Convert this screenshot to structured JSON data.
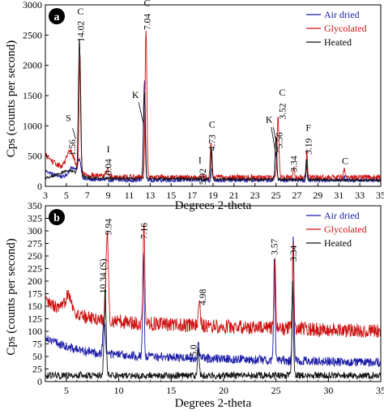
{
  "chart_data": [
    {
      "panel_label": "a",
      "type": "line",
      "xlabel": "Degrees 2-theta",
      "ylabel": "Cps (counts per second)",
      "xlim": [
        3,
        35
      ],
      "ylim": [
        0,
        3000
      ],
      "xticks": [
        3,
        5,
        7,
        9,
        11,
        13,
        15,
        17,
        19,
        21,
        23,
        25,
        27,
        29,
        31,
        33,
        35
      ],
      "yticks": [
        0,
        500,
        1000,
        1500,
        2000,
        2500,
        3000
      ],
      "legend": {
        "position": "top-right"
      },
      "series": [
        {
          "name": "Air dried",
          "color": "#1a1aa6",
          "baseline": 100,
          "noise": 30,
          "baseline_shape": "falling",
          "peaks": [
            [
              5.6,
              180,
              0.5
            ],
            [
              6.25,
              300,
              0.22
            ],
            [
              12.45,
              1650,
              0.13
            ],
            [
              18.9,
              200,
              0.1
            ],
            [
              25.0,
              480,
              0.12
            ],
            [
              27.95,
              380,
              0.08
            ],
            [
              31.5,
              80,
              0.08
            ]
          ]
        },
        {
          "name": "Glycolated",
          "color": "#cc1111",
          "baseline": 150,
          "noise": 45,
          "baseline_shape": "falling-strong",
          "peaks": [
            [
              5.4,
              330,
              0.55
            ],
            [
              6.3,
              1920,
              0.12
            ],
            [
              8.9,
              120,
              0.15
            ],
            [
              12.6,
              2450,
              0.12
            ],
            [
              18.8,
              560,
              0.1
            ],
            [
              25.2,
              1000,
              0.12
            ],
            [
              26.7,
              150,
              0.1
            ],
            [
              27.95,
              480,
              0.08
            ],
            [
              31.5,
              150,
              0.08
            ]
          ]
        },
        {
          "name": "Heated",
          "color": "#111111",
          "baseline": 140,
          "noise": 20,
          "baseline_shape": "hump",
          "peaks": [
            [
              6.25,
              2250,
              0.14
            ],
            [
              12.45,
              1450,
              0.11
            ],
            [
              18.85,
              530,
              0.09
            ],
            [
              25.0,
              700,
              0.11
            ],
            [
              27.9,
              320,
              0.08
            ]
          ]
        }
      ],
      "annotations": [
        {
          "text": "S",
          "x": 5.2,
          "y": 1080,
          "rotate": false
        },
        {
          "text": "1.56",
          "x": 5.55,
          "y": 640,
          "rotate": true
        },
        {
          "text": "14.02",
          "x": 6.35,
          "y": 2560,
          "rotate": true
        },
        {
          "text": "C",
          "x": 6.35,
          "y": 2840,
          "rotate": false
        },
        {
          "text": "I",
          "x": 9.0,
          "y": 560,
          "rotate": false
        },
        {
          "text": "10.04",
          "x": 9.0,
          "y": 280,
          "rotate": true
        },
        {
          "text": "K",
          "x": 11.6,
          "y": 1460,
          "rotate": false
        },
        {
          "text": "7.04",
          "x": 12.7,
          "y": 2720,
          "rotate": true
        },
        {
          "text": "C",
          "x": 12.7,
          "y": 2980,
          "rotate": false
        },
        {
          "text": "I",
          "x": 17.75,
          "y": 380,
          "rotate": false
        },
        {
          "text": "5.02",
          "x": 18.0,
          "y": 160,
          "rotate": true
        },
        {
          "text": "4.73",
          "x": 18.9,
          "y": 720,
          "rotate": true
        },
        {
          "text": "C",
          "x": 18.9,
          "y": 970,
          "rotate": false
        },
        {
          "text": "K",
          "x": 24.35,
          "y": 1050,
          "rotate": false
        },
        {
          "text": "5.56",
          "x": 25.3,
          "y": 760,
          "rotate": true
        },
        {
          "text": "3.52",
          "x": 25.6,
          "y": 1240,
          "rotate": true
        },
        {
          "text": "C",
          "x": 25.6,
          "y": 1500,
          "rotate": false
        },
        {
          "text": "3.34",
          "x": 26.7,
          "y": 370,
          "rotate": true
        },
        {
          "text": "3.19",
          "x": 28.1,
          "y": 660,
          "rotate": true
        },
        {
          "text": "F",
          "x": 28.1,
          "y": 920,
          "rotate": false
        },
        {
          "text": "C",
          "x": 31.6,
          "y": 370,
          "rotate": false
        }
      ],
      "leader_lines": [
        [
          [
            5.6,
            960
          ],
          [
            5.9,
            780
          ]
        ],
        [
          [
            11.9,
            1390
          ],
          [
            12.4,
            1000
          ]
        ],
        [
          [
            24.55,
            980
          ],
          [
            25.0,
            520
          ]
        ],
        [
          [
            24.75,
            980
          ],
          [
            25.2,
            560
          ]
        ]
      ]
    },
    {
      "panel_label": "b",
      "type": "line",
      "xlabel": "Degrees 2-theta",
      "ylabel": "Cps (counts per second)",
      "xlim": [
        3,
        35
      ],
      "ylim": [
        0,
        350
      ],
      "xticks": [
        5,
        10,
        15,
        20,
        25,
        30,
        35
      ],
      "yticks": [
        0,
        25,
        50,
        75,
        100,
        125,
        150,
        175,
        200,
        225,
        250,
        275,
        300,
        325,
        350
      ],
      "legend": {
        "position": "top-right"
      },
      "series": [
        {
          "name": "Air dried",
          "color": "#1a1aa6",
          "baseline": 55,
          "noise": 9,
          "baseline_shape": "falling-b-blue",
          "peaks": [
            [
              8.6,
              70,
              0.15
            ],
            [
              12.35,
              215,
              0.1
            ],
            [
              17.6,
              25,
              0.12
            ],
            [
              24.85,
              200,
              0.1
            ],
            [
              26.65,
              250,
              0.1
            ]
          ]
        },
        {
          "name": "Glycolated",
          "color": "#cc1111",
          "baseline": 120,
          "noise": 14,
          "baseline_shape": "falling-b-red",
          "peaks": [
            [
              5.2,
              40,
              0.4
            ],
            [
              8.9,
              180,
              0.15
            ],
            [
              12.4,
              200,
              0.11
            ],
            [
              17.7,
              40,
              0.14
            ],
            [
              24.9,
              150,
              0.1
            ],
            [
              26.65,
              160,
              0.1
            ]
          ]
        },
        {
          "name": "Heated",
          "color": "#111111",
          "baseline": 12,
          "noise": 7,
          "baseline_shape": "flat",
          "peaks": [
            [
              8.7,
              170,
              0.14
            ],
            [
              17.6,
              50,
              0.11
            ],
            [
              26.6,
              195,
              0.1
            ]
          ]
        }
      ],
      "annotations": [
        {
          "text": "10.34 (S)",
          "x": 8.5,
          "y": 210,
          "rotate": true
        },
        {
          "text": "9.94",
          "x": 9.0,
          "y": 308,
          "rotate": true
        },
        {
          "text": "7.16",
          "x": 12.4,
          "y": 300,
          "rotate": true
        },
        {
          "text": "4.98",
          "x": 18.0,
          "y": 168,
          "rotate": true
        },
        {
          "text": "5.0",
          "x": 17.1,
          "y": 62,
          "rotate": true
        },
        {
          "text": "3.57",
          "x": 24.85,
          "y": 268,
          "rotate": true
        },
        {
          "text": "3.34",
          "x": 26.65,
          "y": 255,
          "rotate": true
        }
      ],
      "leader_lines": []
    }
  ]
}
